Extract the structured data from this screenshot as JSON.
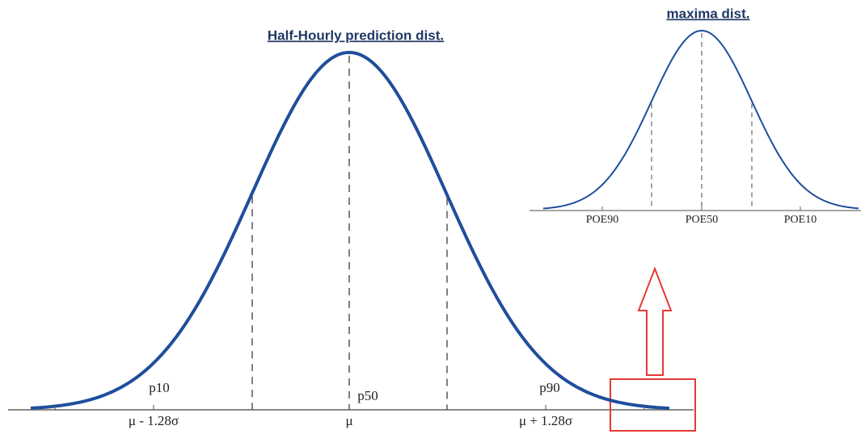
{
  "main": {
    "title": "Half-Hourly prediction dist.",
    "percentiles": [
      "p10",
      "p50",
      "p90"
    ],
    "axis_labels": [
      "μ - 1.28σ",
      "μ",
      "μ + 1.28σ"
    ]
  },
  "inset": {
    "title": "maxima dist.",
    "axis_labels": [
      "POE90",
      "POE50",
      "POE10"
    ]
  }
}
